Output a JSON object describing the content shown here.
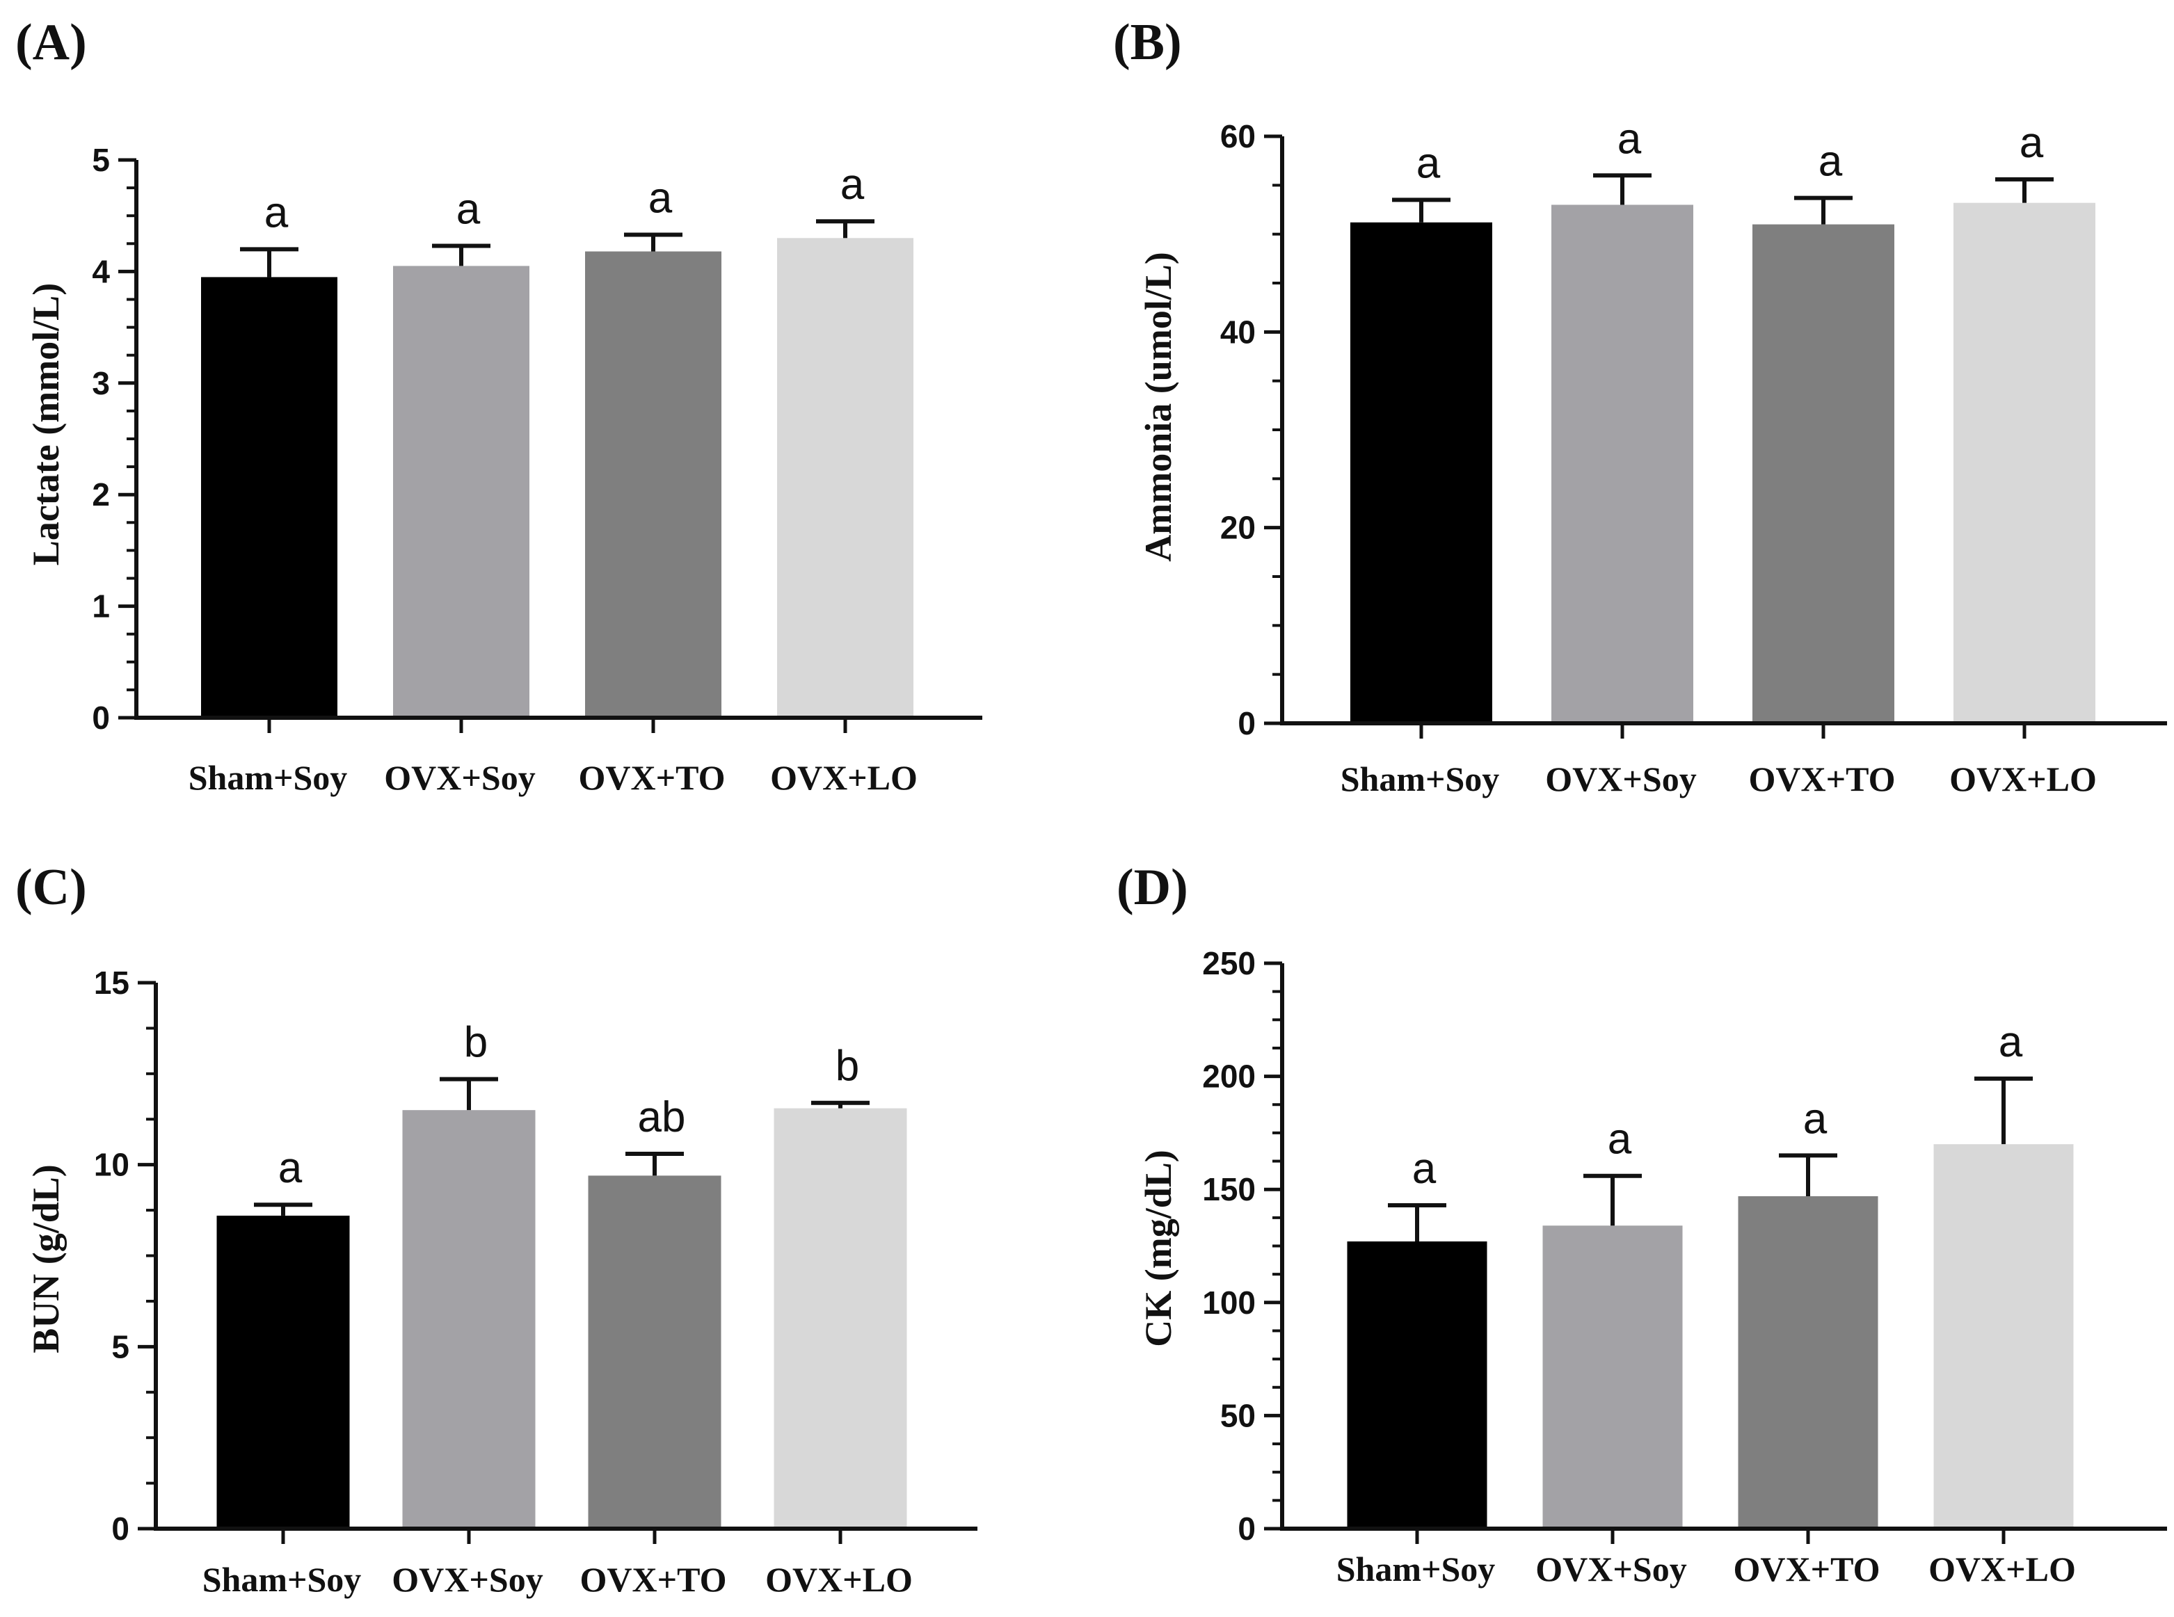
{
  "figure": {
    "colors": {
      "bars": [
        "#000000",
        "#a3a2a6",
        "#7f7f7f",
        "#d8d8d8"
      ],
      "axis": "#111111"
    }
  },
  "chart_data": [
    {
      "panel": "(A)",
      "type": "bar",
      "categories": [
        "Sham+Soy",
        "OVX+Soy",
        "OVX+TO",
        "OVX+LO"
      ],
      "values": [
        3.95,
        4.05,
        4.18,
        4.3
      ],
      "errors": [
        0.25,
        0.18,
        0.15,
        0.15
      ],
      "labels": [
        "a",
        "a",
        "a",
        "a"
      ],
      "ylabel": "Lactate (mmol/L)",
      "ylim": [
        0,
        5
      ],
      "yticks": [
        0,
        1,
        2,
        3,
        4,
        5
      ],
      "ytick_labels": [
        "0",
        "1",
        "2",
        "3",
        "4",
        "5"
      ]
    },
    {
      "panel": "(B)",
      "type": "bar",
      "categories": [
        "Sham+Soy",
        "OVX+Soy",
        "OVX+TO",
        "OVX+LO"
      ],
      "values": [
        51.2,
        53.0,
        51.0,
        53.2
      ],
      "errors": [
        2.3,
        3.0,
        2.7,
        2.4
      ],
      "labels": [
        "a",
        "a",
        "a",
        "a"
      ],
      "ylabel": "Ammonia (umol/L)",
      "ylim": [
        0,
        60
      ],
      "yticks": [
        0,
        20,
        40,
        60
      ],
      "ytick_labels": [
        "0",
        "20",
        "40",
        "60"
      ]
    },
    {
      "panel": "(C)",
      "type": "bar",
      "categories": [
        "Sham+Soy",
        "OVX+Soy",
        "OVX+TO",
        "OVX+LO"
      ],
      "values": [
        8.6,
        11.5,
        9.7,
        11.55
      ],
      "errors": [
        0.3,
        0.85,
        0.6,
        0.15
      ],
      "labels": [
        "a",
        "b",
        "ab",
        "b"
      ],
      "ylabel": "BUN (g/dL)",
      "ylim": [
        0,
        15
      ],
      "yticks": [
        0,
        5,
        10,
        15
      ],
      "ytick_labels": [
        "0",
        "5",
        "10",
        "15"
      ]
    },
    {
      "panel": "(D)",
      "type": "bar",
      "categories": [
        "Sham+Soy",
        "OVX+Soy",
        "OVX+TO",
        "OVX+LO"
      ],
      "values": [
        127,
        134,
        147,
        170
      ],
      "errors": [
        16,
        22,
        18,
        29
      ],
      "labels": [
        "a",
        "a",
        "a",
        "a"
      ],
      "ylabel": "CK (mg/dL)",
      "ylim": [
        0,
        250
      ],
      "yticks": [
        0,
        50,
        100,
        150,
        200,
        250
      ],
      "ytick_labels": [
        "0",
        "50",
        "100",
        "150",
        "200",
        "250"
      ]
    }
  ]
}
